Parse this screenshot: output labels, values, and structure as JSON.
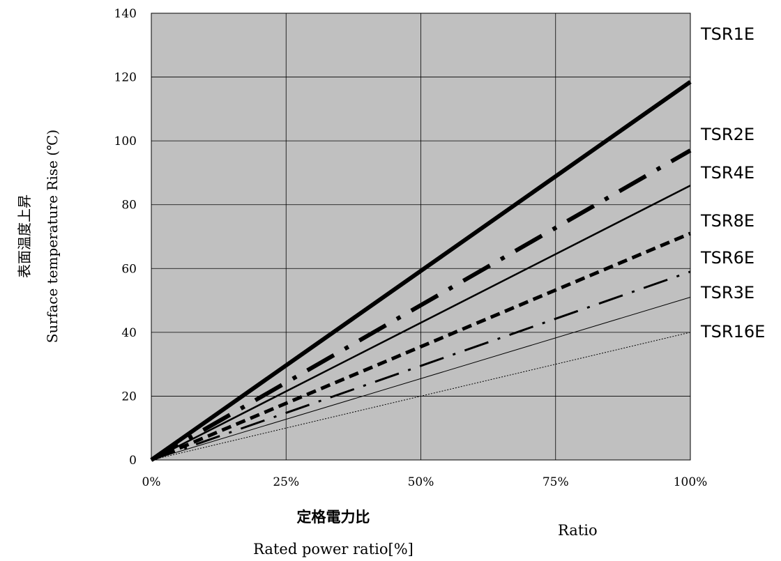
{
  "chart_data": {
    "type": "line",
    "title": "",
    "xlabel_ja": "定格電力比",
    "xlabel": "Rated power ratio[%]",
    "ylabel_ja": "表面温度上昇",
    "ylabel": "Surface temperature Rise (℃)",
    "annotation": "Ratio",
    "x_ticks": [
      "0%",
      "25%",
      "50%",
      "75%",
      "100%"
    ],
    "y_ticks": [
      "0",
      "20",
      "40",
      "60",
      "80",
      "100",
      "120",
      "140"
    ],
    "xlim": [
      0,
      100
    ],
    "ylim": [
      0,
      140
    ],
    "grid": true,
    "legend": "labels at right end of lines",
    "series": [
      {
        "name": "TSR1E",
        "x": [
          0,
          100
        ],
        "y": [
          0,
          118.5
        ],
        "style": "solid-heavy"
      },
      {
        "name": "TSR2E",
        "x": [
          0,
          100
        ],
        "y": [
          0,
          97
        ],
        "style": "dash-dot-heavy"
      },
      {
        "name": "TSR4E",
        "x": [
          0,
          100
        ],
        "y": [
          0,
          86
        ],
        "style": "solid-medium"
      },
      {
        "name": "TSR8E",
        "x": [
          0,
          100
        ],
        "y": [
          0,
          71
        ],
        "style": "dashed-heavy"
      },
      {
        "name": "TSR6E",
        "x": [
          0,
          100
        ],
        "y": [
          0,
          59
        ],
        "style": "dash-dot-medium"
      },
      {
        "name": "TSR3E",
        "x": [
          0,
          100
        ],
        "y": [
          0,
          51
        ],
        "style": "solid-thin"
      },
      {
        "name": "TSR16E",
        "x": [
          0,
          100
        ],
        "y": [
          0,
          40
        ],
        "style": "dotted-thin"
      }
    ]
  }
}
